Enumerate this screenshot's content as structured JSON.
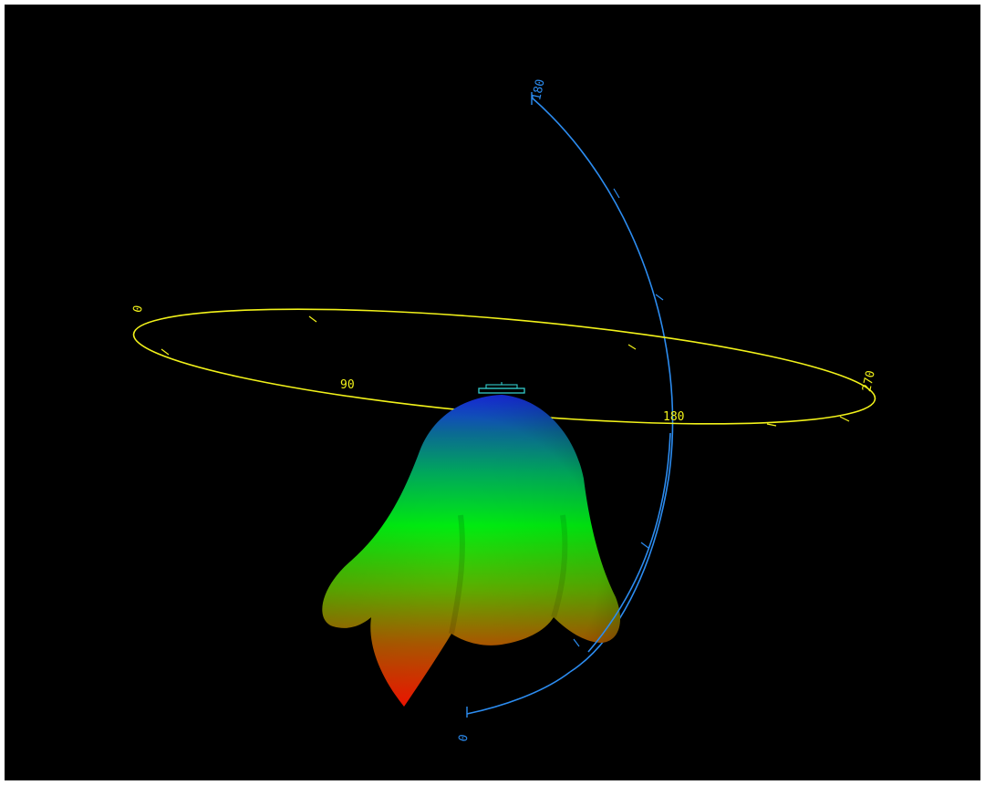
{
  "colors": {
    "background": "#000000",
    "horizontal_ring": "#f2f21a",
    "vertical_arc": "#2c8cf0",
    "antenna_element": "#33cccc",
    "pattern_low": "#ff1a00",
    "pattern_mid": "#00ff00",
    "pattern_high": "#1040ff"
  },
  "horizontal_ring": {
    "labels": {
      "deg_0": "0",
      "deg_90": "90",
      "deg_180": "180",
      "deg_270": "270"
    }
  },
  "vertical_arc": {
    "labels": {
      "top": "180",
      "bottom": "0"
    }
  },
  "icons": {
    "antenna": "antenna-element-icon"
  }
}
